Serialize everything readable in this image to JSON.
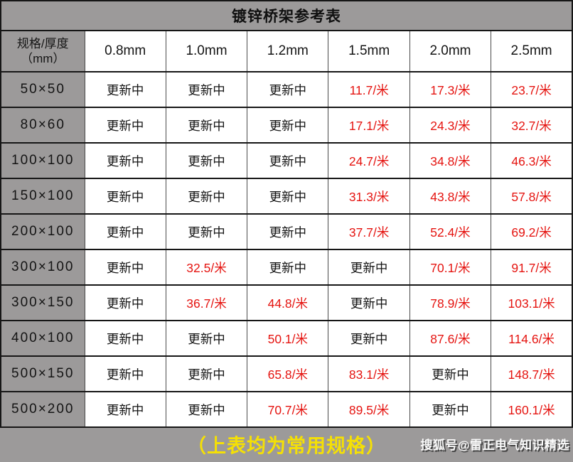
{
  "title": "镀锌桥架参考表",
  "corner_header": {
    "line1": "规格/厚度",
    "line2": "（mm）"
  },
  "footer": {
    "note": "（上表均为常用规格）",
    "watermark": "搜狐号@雷正电气知识精选"
  },
  "colors": {
    "background_gray": "#9c9a9a",
    "cell_white": "#ffffff",
    "border_dark": "#161616",
    "price_red": "#e51410",
    "note_yellow": "#f5e005",
    "watermark_white": "#fbfbfb",
    "text_black": "#141414"
  },
  "updating_label": "更新中",
  "chart_data": {
    "type": "table",
    "title": "镀锌桥架参考表",
    "columns": [
      "规格/厚度（mm）",
      "0.8mm",
      "1.0mm",
      "1.2mm",
      "1.5mm",
      "2.0mm",
      "2.5mm"
    ],
    "rows": [
      [
        "50×50",
        "更新中",
        "更新中",
        "更新中",
        "11.7/米",
        "17.3/米",
        "23.7/米"
      ],
      [
        "80×60",
        "更新中",
        "更新中",
        "更新中",
        "17.1/米",
        "24.3/米",
        "32.7/米"
      ],
      [
        "100×100",
        "更新中",
        "更新中",
        "更新中",
        "24.7/米",
        "34.8/米",
        "46.3/米"
      ],
      [
        "150×100",
        "更新中",
        "更新中",
        "更新中",
        "31.3/米",
        "43.8/米",
        "57.8/米"
      ],
      [
        "200×100",
        "更新中",
        "更新中",
        "更新中",
        "37.7/米",
        "52.4/米",
        "69.2/米"
      ],
      [
        "300×100",
        "更新中",
        "32.5/米",
        "更新中",
        "更新中",
        "70.1/米",
        "91.7/米"
      ],
      [
        "300×150",
        "更新中",
        "36.7/米",
        "44.8/米",
        "更新中",
        "78.9/米",
        "103.1/米"
      ],
      [
        "400×100",
        "更新中",
        "更新中",
        "50.1/米",
        "更新中",
        "87.6/米",
        "114.6/米"
      ],
      [
        "500×150",
        "更新中",
        "更新中",
        "65.8/米",
        "83.1/米",
        "更新中",
        "148.7/米"
      ],
      [
        "500×200",
        "更新中",
        "更新中",
        "70.7/米",
        "89.5/米",
        "更新中",
        "160.1/米"
      ]
    ]
  }
}
